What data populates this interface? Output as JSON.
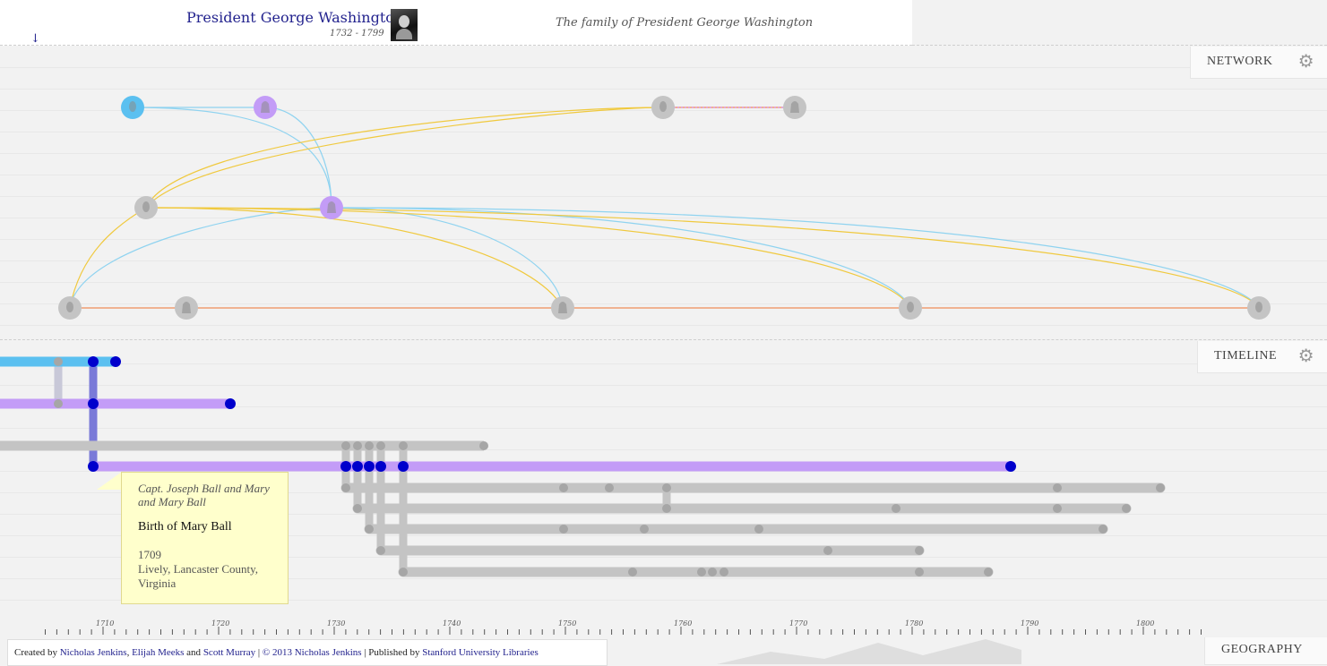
{
  "header": {
    "name": "President George Washington",
    "dates": "1732 - 1799",
    "subtitle": "The family of President George Washington",
    "down_arrow": "↓"
  },
  "sections": {
    "network": {
      "label": "NETWORK",
      "icon": "gear-icon"
    },
    "timeline": {
      "label": "TIMELINE",
      "icon": "gear-icon"
    },
    "geography": {
      "label": "GEOGRAPHY"
    }
  },
  "tooltip": {
    "names": "Capt. Joseph Ball and Mary and Mary Ball",
    "event": "Birth of Mary Ball",
    "year": "1709",
    "place": "Lively, Lancaster County, Virginia"
  },
  "axis": {
    "tick_labels": [
      "1710",
      "1720",
      "1730",
      "1740",
      "1750",
      "1760",
      "1770",
      "1780",
      "1790",
      "1800"
    ]
  },
  "footer": {
    "created_by": "Created by",
    "author1": "Nicholas Jenkins",
    "sep1": ",",
    "author2": "Elijah Meeks",
    "and": "and",
    "author3": "Scott Murray",
    "copyright_prefix": "|",
    "copyright": "© 2013 Nicholas Jenkins",
    "published_prefix": "| Published by",
    "publisher": "Stanford University Libraries"
  },
  "colors": {
    "male_node": "#5bc0f0",
    "female_node": "#c39cf7",
    "unknown_node": "#c4c4c4",
    "mother_link": "#f0c93e",
    "father_link": "#8fd3f0",
    "spouse_link": "#f08c5a",
    "event_dot": "#0000cc",
    "header_link": "#23238e",
    "tooltip_bg": "#ffffcc"
  }
}
